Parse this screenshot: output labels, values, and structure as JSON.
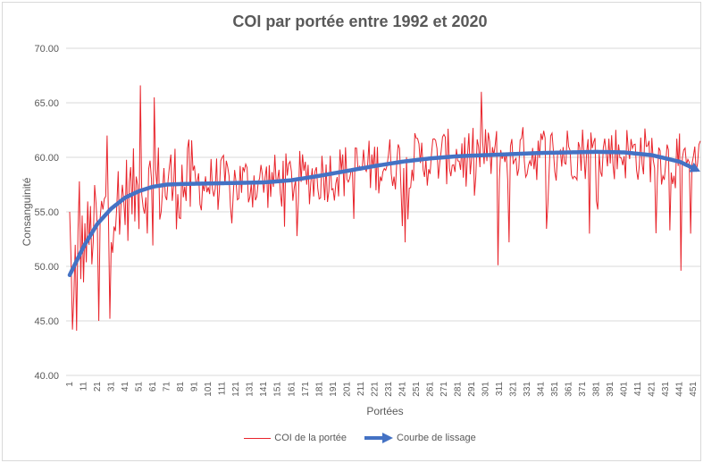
{
  "chart_data": {
    "type": "line",
    "title": "COI par portée entre 1992 et 2020",
    "xlabel": "Portées",
    "ylabel": "Consanguinité",
    "ylim": [
      40,
      70
    ],
    "yticks": [
      "40.00",
      "45.00",
      "50.00",
      "55.00",
      "60.00",
      "65.00",
      "70.00"
    ],
    "ytick_values": [
      40,
      45,
      50,
      55,
      60,
      65,
      70
    ],
    "x_range": [
      1,
      456
    ],
    "xticks": [
      1,
      11,
      21,
      31,
      41,
      51,
      61,
      71,
      81,
      91,
      101,
      111,
      121,
      131,
      141,
      151,
      161,
      171,
      181,
      191,
      201,
      211,
      221,
      231,
      241,
      251,
      261,
      271,
      281,
      291,
      301,
      311,
      321,
      331,
      341,
      351,
      361,
      371,
      381,
      391,
      401,
      411,
      421,
      431,
      441,
      451
    ],
    "grid": true,
    "legend_position": "bottom",
    "series": [
      {
        "name": "COI de la portée",
        "color": "#e8242b",
        "style": "thin-line",
        "generator": "noisy series around trend; notable extremes listed",
        "count": 456,
        "notable_points": [
          {
            "x": 1,
            "y": 55.0
          },
          {
            "x": 3,
            "y": 44.2
          },
          {
            "x": 6,
            "y": 44.1
          },
          {
            "x": 8,
            "y": 57.8
          },
          {
            "x": 22,
            "y": 45.0
          },
          {
            "x": 30,
            "y": 45.2
          },
          {
            "x": 28,
            "y": 62.0
          },
          {
            "x": 52,
            "y": 66.6
          },
          {
            "x": 62,
            "y": 65.5
          },
          {
            "x": 298,
            "y": 66.0
          },
          {
            "x": 310,
            "y": 50.1
          },
          {
            "x": 318,
            "y": 52.2
          },
          {
            "x": 243,
            "y": 52.2
          },
          {
            "x": 376,
            "y": 53.0
          },
          {
            "x": 434,
            "y": 53.3
          },
          {
            "x": 442,
            "y": 49.6
          },
          {
            "x": 449,
            "y": 53.0
          },
          {
            "x": 456,
            "y": 61.5
          }
        ]
      },
      {
        "name": "Courbe de lissage",
        "color": "#4472c4",
        "style": "thick-line-arrow",
        "x": [
          1,
          11,
          21,
          31,
          41,
          51,
          61,
          71,
          81,
          101,
          121,
          141,
          161,
          181,
          201,
          221,
          241,
          261,
          281,
          301,
          321,
          341,
          361,
          381,
          401,
          421,
          441,
          456
        ],
        "values": [
          49.2,
          51.8,
          53.9,
          55.3,
          56.3,
          56.9,
          57.3,
          57.5,
          57.55,
          57.6,
          57.65,
          57.7,
          57.9,
          58.3,
          58.75,
          59.2,
          59.6,
          59.9,
          60.1,
          60.2,
          60.3,
          60.4,
          60.45,
          60.5,
          60.45,
          60.2,
          59.6,
          58.7
        ]
      }
    ]
  }
}
